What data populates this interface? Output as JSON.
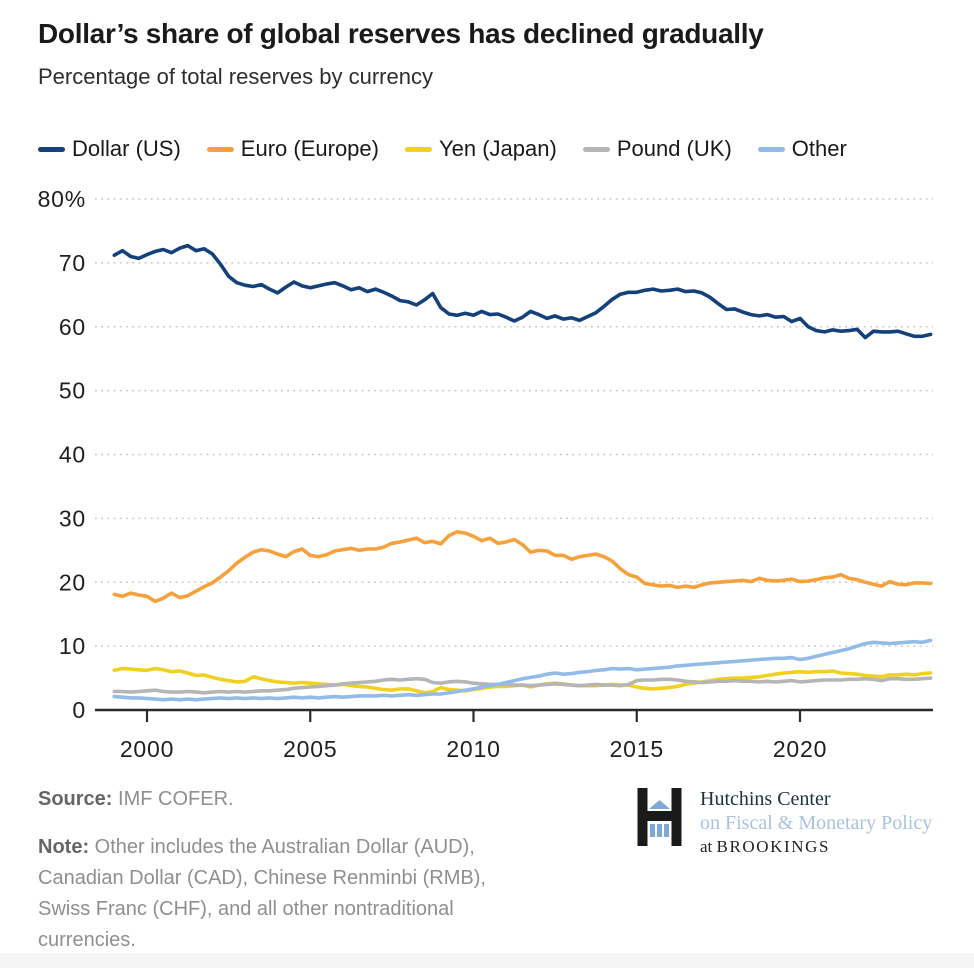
{
  "header": {
    "title": "Dollar’s share of global reserves has declined gradually",
    "subtitle": "Percentage of total reserves by currency"
  },
  "chart_data": {
    "type": "line",
    "title": "Dollar’s share of global reserves has declined gradually",
    "subtitle": "Percentage of total reserves by currency",
    "xlabel": "",
    "ylabel": "Percentage of total reserves",
    "x_start": 1999.0,
    "x_step": 0.25,
    "x_end": 2024.0,
    "xlim": [
      1998.6,
      2024.1
    ],
    "ylim": [
      0,
      80
    ],
    "grid": "horizontal-dotted",
    "legend_position": "top",
    "x_ticks": [
      {
        "value": 2000,
        "label": "2000"
      },
      {
        "value": 2005,
        "label": "2005"
      },
      {
        "value": 2010,
        "label": "2010"
      },
      {
        "value": 2015,
        "label": "2015"
      },
      {
        "value": 2020,
        "label": "2020"
      }
    ],
    "y_ticks": [
      {
        "value": 0,
        "label": "0"
      },
      {
        "value": 10,
        "label": "10"
      },
      {
        "value": 20,
        "label": "20"
      },
      {
        "value": 30,
        "label": "30"
      },
      {
        "value": 40,
        "label": "40"
      },
      {
        "value": 50,
        "label": "50"
      },
      {
        "value": 60,
        "label": "60"
      },
      {
        "value": 70,
        "label": "70"
      },
      {
        "value": 80,
        "label": "80%"
      }
    ],
    "series": [
      {
        "name": "Dollar (US)",
        "color": "#14407c",
        "values": [
          71.2,
          71.9,
          71.0,
          70.7,
          71.3,
          71.8,
          72.1,
          71.6,
          72.3,
          72.7,
          71.9,
          72.2,
          71.4,
          69.8,
          67.9,
          66.9,
          66.5,
          66.3,
          66.6,
          65.9,
          65.3,
          66.2,
          67.0,
          66.4,
          66.1,
          66.4,
          66.7,
          66.9,
          66.4,
          65.8,
          66.1,
          65.5,
          65.9,
          65.4,
          64.8,
          64.1,
          63.9,
          63.4,
          64.2,
          65.2,
          63.0,
          62.0,
          61.8,
          62.1,
          61.8,
          62.4,
          61.9,
          62.0,
          61.5,
          60.9,
          61.5,
          62.4,
          61.9,
          61.3,
          61.7,
          61.2,
          61.4,
          61.0,
          61.6,
          62.2,
          63.2,
          64.3,
          65.1,
          65.4,
          65.4,
          65.7,
          65.9,
          65.6,
          65.7,
          65.9,
          65.5,
          65.6,
          65.3,
          64.6,
          63.6,
          62.7,
          62.8,
          62.3,
          61.9,
          61.7,
          61.9,
          61.5,
          61.6,
          60.8,
          61.3,
          60.0,
          59.4,
          59.2,
          59.5,
          59.3,
          59.4,
          59.6,
          58.3,
          59.3,
          59.2,
          59.2,
          59.3,
          58.9,
          58.5,
          58.5,
          58.8
        ]
      },
      {
        "name": "Euro (Europe)",
        "color": "#f7a13c",
        "values": [
          18.1,
          17.8,
          18.3,
          18.0,
          17.8,
          17.0,
          17.5,
          18.3,
          17.6,
          17.9,
          18.6,
          19.3,
          19.9,
          20.8,
          21.8,
          23.0,
          23.9,
          24.7,
          25.1,
          24.9,
          24.4,
          24.0,
          24.8,
          25.2,
          24.2,
          24.0,
          24.3,
          24.9,
          25.1,
          25.3,
          25.0,
          25.2,
          25.2,
          25.5,
          26.1,
          26.3,
          26.6,
          26.9,
          26.2,
          26.4,
          26.0,
          27.3,
          27.9,
          27.7,
          27.2,
          26.5,
          26.9,
          26.1,
          26.3,
          26.7,
          25.9,
          24.7,
          25.0,
          24.9,
          24.2,
          24.2,
          23.6,
          24.0,
          24.2,
          24.4,
          24.0,
          23.3,
          22.1,
          21.2,
          20.8,
          19.8,
          19.6,
          19.4,
          19.5,
          19.2,
          19.4,
          19.2,
          19.6,
          19.9,
          20.0,
          20.1,
          20.2,
          20.3,
          20.1,
          20.6,
          20.3,
          20.2,
          20.3,
          20.5,
          20.1,
          20.2,
          20.4,
          20.7,
          20.8,
          21.2,
          20.6,
          20.4,
          20.0,
          19.7,
          19.4,
          20.1,
          19.7,
          19.6,
          19.9,
          19.9,
          19.8
        ]
      },
      {
        "name": "Yen (Japan)",
        "color": "#f0d121",
        "values": [
          6.2,
          6.5,
          6.4,
          6.3,
          6.2,
          6.5,
          6.3,
          6.0,
          6.1,
          5.8,
          5.4,
          5.5,
          5.1,
          4.8,
          4.6,
          4.4,
          4.5,
          5.2,
          4.9,
          4.6,
          4.4,
          4.3,
          4.2,
          4.3,
          4.2,
          4.1,
          4.0,
          3.9,
          4.0,
          3.8,
          3.7,
          3.6,
          3.4,
          3.2,
          3.1,
          3.3,
          3.3,
          3.0,
          2.7,
          2.9,
          3.5,
          3.2,
          3.1,
          3.0,
          3.2,
          3.4,
          3.6,
          3.7,
          3.7,
          3.8,
          3.9,
          3.6,
          3.9,
          4.1,
          4.2,
          4.1,
          3.9,
          3.8,
          3.8,
          3.8,
          3.9,
          4.0,
          3.9,
          3.9,
          3.6,
          3.4,
          3.3,
          3.4,
          3.5,
          3.7,
          4.0,
          4.2,
          4.4,
          4.6,
          4.8,
          4.9,
          5.0,
          5.0,
          5.1,
          5.2,
          5.4,
          5.6,
          5.8,
          5.9,
          6.0,
          5.9,
          6.0,
          6.0,
          6.1,
          5.8,
          5.7,
          5.6,
          5.4,
          5.3,
          5.2,
          5.5,
          5.5,
          5.6,
          5.5,
          5.7,
          5.8
        ]
      },
      {
        "name": "Pound (UK)",
        "color": "#b5b5b5",
        "values": [
          2.9,
          2.9,
          2.8,
          2.9,
          3.0,
          3.1,
          2.9,
          2.8,
          2.8,
          2.9,
          2.8,
          2.7,
          2.8,
          2.9,
          2.8,
          2.9,
          2.8,
          2.9,
          3.0,
          3.0,
          3.1,
          3.2,
          3.4,
          3.5,
          3.6,
          3.7,
          3.8,
          3.9,
          4.1,
          4.2,
          4.3,
          4.4,
          4.5,
          4.7,
          4.8,
          4.7,
          4.8,
          4.9,
          4.8,
          4.3,
          4.2,
          4.4,
          4.5,
          4.4,
          4.2,
          4.1,
          4.0,
          4.0,
          4.0,
          3.9,
          3.9,
          3.8,
          3.9,
          4.0,
          4.1,
          4.0,
          3.9,
          3.8,
          3.9,
          4.0,
          3.9,
          3.9,
          3.8,
          4.0,
          4.6,
          4.7,
          4.7,
          4.8,
          4.8,
          4.7,
          4.5,
          4.4,
          4.3,
          4.4,
          4.5,
          4.5,
          4.6,
          4.5,
          4.5,
          4.4,
          4.5,
          4.4,
          4.5,
          4.6,
          4.4,
          4.5,
          4.6,
          4.7,
          4.7,
          4.7,
          4.8,
          4.8,
          4.9,
          4.8,
          4.6,
          4.9,
          4.9,
          4.8,
          4.8,
          4.9,
          5.0
        ]
      },
      {
        "name": "Other",
        "color": "#92bbe8",
        "values": [
          2.1,
          2.0,
          1.9,
          1.9,
          1.8,
          1.7,
          1.6,
          1.7,
          1.6,
          1.7,
          1.6,
          1.7,
          1.8,
          1.9,
          1.8,
          1.9,
          1.8,
          1.9,
          1.8,
          1.9,
          1.8,
          1.9,
          2.0,
          1.9,
          2.0,
          1.9,
          2.0,
          2.1,
          2.0,
          2.1,
          2.2,
          2.2,
          2.2,
          2.3,
          2.2,
          2.3,
          2.4,
          2.3,
          2.4,
          2.5,
          2.5,
          2.7,
          2.9,
          3.1,
          3.3,
          3.6,
          3.8,
          4.0,
          4.3,
          4.6,
          4.9,
          5.1,
          5.3,
          5.6,
          5.8,
          5.6,
          5.7,
          5.9,
          6.0,
          6.2,
          6.3,
          6.5,
          6.4,
          6.5,
          6.3,
          6.4,
          6.5,
          6.6,
          6.7,
          6.9,
          7.0,
          7.1,
          7.2,
          7.3,
          7.4,
          7.5,
          7.6,
          7.7,
          7.8,
          7.9,
          8.0,
          8.1,
          8.1,
          8.2,
          7.9,
          8.1,
          8.4,
          8.7,
          9.0,
          9.3,
          9.6,
          10.0,
          10.4,
          10.6,
          10.5,
          10.4,
          10.5,
          10.6,
          10.7,
          10.6,
          10.9
        ]
      }
    ]
  },
  "footer": {
    "source_label": "Source:",
    "source_text": " IMF COFER.",
    "note_label": "Note:",
    "note_text": " Other includes the Australian Dollar (AUD), Canadian Dollar (CAD), Chinese Renminbi (RMB), Swiss Franc (CHF), and all other nontraditional currencies."
  },
  "logo": {
    "line1": "Hutchins Center",
    "line2": "on Fiscal & Monetary Policy",
    "line3_prefix": "at ",
    "line3_name": "BROOKINGS",
    "mark_color": "#1a1a1a",
    "accent_color": "#7fa8d7"
  }
}
